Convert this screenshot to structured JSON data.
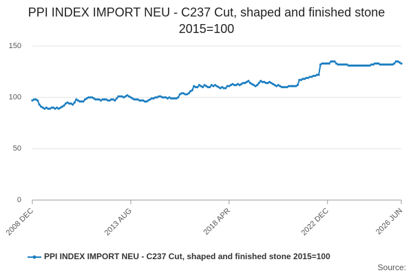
{
  "chart_data": {
    "type": "line",
    "title": "PPI INDEX IMPORT NEU - C237 Cut, shaped and finished stone 2015=100",
    "source": "Source:",
    "categories": [
      "2008 DEC",
      null,
      null,
      null,
      null,
      null,
      null,
      null,
      null,
      null,
      null,
      null,
      null,
      null,
      null,
      null,
      null,
      null,
      null,
      null,
      null,
      null,
      null,
      null,
      null,
      null,
      null,
      null,
      null,
      null,
      null,
      null,
      null,
      null,
      null,
      null,
      null,
      null,
      null,
      null,
      null,
      null,
      null,
      null,
      null,
      null,
      null,
      null,
      null,
      null,
      null,
      null,
      null,
      null,
      null,
      null,
      "2013 AUG",
      null,
      null,
      null,
      null,
      null,
      null,
      null,
      null,
      null,
      null,
      null,
      null,
      null,
      null,
      null,
      null,
      null,
      null,
      null,
      null,
      null,
      null,
      null,
      null,
      null,
      null,
      null,
      null,
      null,
      null,
      null,
      null,
      null,
      null,
      null,
      null,
      null,
      null,
      null,
      null,
      null,
      null,
      null,
      null,
      null,
      null,
      null,
      null,
      null,
      null,
      null,
      null,
      null,
      null,
      null,
      "2018 APR",
      null,
      null,
      null,
      null,
      null,
      null,
      null,
      null,
      null,
      null,
      null,
      null,
      null,
      null,
      null,
      null,
      null,
      null,
      null,
      null,
      null,
      null,
      null,
      null,
      null,
      null,
      null,
      null,
      null,
      null,
      null,
      null,
      null,
      null,
      null,
      null,
      null,
      null,
      null,
      null,
      null,
      null,
      null,
      null,
      null,
      null,
      null,
      null,
      null,
      null,
      null,
      null,
      null,
      null,
      null,
      "2022 DEC",
      null,
      null,
      null,
      null,
      null,
      null,
      null,
      null,
      null,
      null,
      null,
      null,
      null,
      null,
      null,
      null,
      null,
      null,
      null,
      null,
      null,
      null,
      null,
      null,
      null,
      null,
      null,
      null,
      null,
      null,
      null,
      null,
      null,
      null,
      null,
      null,
      null,
      null,
      null,
      null,
      null,
      "2026 JUN"
    ],
    "series": [
      {
        "name": "PPI INDEX IMPORT NEU - C237 Cut, shaped and finished stone 2015=100",
        "color": "#1a7dc0",
        "values": [
          97,
          98,
          98,
          97,
          93,
          91,
          90,
          89,
          90,
          89,
          89,
          90,
          90,
          89,
          90,
          89,
          90,
          91,
          92,
          94,
          95,
          94,
          94,
          93,
          95,
          98,
          97,
          96,
          96,
          96,
          98,
          99,
          100,
          100,
          100,
          99,
          98,
          98,
          98,
          97,
          98,
          98,
          98,
          97,
          97,
          98,
          98,
          97,
          99,
          101,
          101,
          101,
          100,
          101,
          102,
          101,
          100,
          99,
          98,
          98,
          98,
          97,
          97,
          97,
          96,
          96,
          97,
          98,
          99,
          99,
          100,
          100,
          101,
          101,
          100,
          100,
          100,
          99,
          100,
          99,
          99,
          99,
          99,
          100,
          103,
          104,
          104,
          103,
          103,
          104,
          106,
          107,
          111,
          110,
          110,
          112,
          111,
          110,
          112,
          111,
          110,
          110,
          112,
          111,
          112,
          111,
          110,
          109,
          110,
          109,
          109,
          111,
          111,
          112,
          113,
          112,
          112,
          113,
          112,
          113,
          114,
          114,
          115,
          116,
          114,
          113,
          112,
          111,
          112,
          114,
          116,
          115,
          115,
          114,
          114,
          115,
          114,
          113,
          112,
          111,
          112,
          111,
          110,
          110,
          110,
          110,
          111,
          111,
          111,
          111,
          111,
          112,
          117,
          117,
          118,
          118,
          119,
          119,
          120,
          120,
          121,
          121,
          122,
          122,
          132,
          133,
          133,
          133,
          133,
          133,
          135,
          135,
          135,
          133,
          132,
          132,
          132,
          132,
          132,
          132,
          131,
          131,
          131,
          131,
          131,
          131,
          131,
          131,
          131,
          131,
          131,
          131,
          131,
          132,
          132,
          133,
          133,
          133,
          132,
          132,
          132,
          132,
          132,
          132,
          132,
          132,
          133,
          135,
          135,
          134,
          133
        ]
      }
    ],
    "ylim": [
      0,
      150
    ],
    "yticks": [
      0,
      50,
      100,
      150
    ],
    "grid": true
  }
}
